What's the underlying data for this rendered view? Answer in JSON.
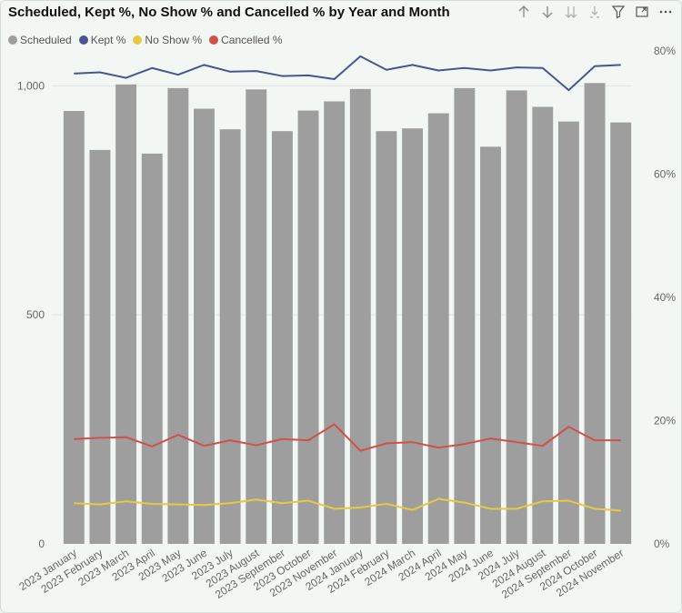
{
  "title": "Scheduled, Kept %, No Show % and Cancelled % by Year and Month",
  "toolbar": {
    "icons": [
      "arrow-up-icon",
      "arrow-down-icon",
      "double-arrow-down-icon",
      "expand-hierarchy-icon",
      "filter-icon",
      "focus-mode-icon",
      "more-options-icon"
    ]
  },
  "legend": [
    {
      "label": "Scheduled",
      "color": "#9e9e9e"
    },
    {
      "label": "Kept %",
      "color": "#4a5490"
    },
    {
      "label": "No Show %",
      "color": "#e8c840"
    },
    {
      "label": "Cancelled %",
      "color": "#d0514a"
    }
  ],
  "chart_data": {
    "type": "bar",
    "title": "Scheduled, Kept %, No Show % and Cancelled % by Year and Month",
    "categories": [
      "2023 January",
      "2023 February",
      "2023 March",
      "2023 April",
      "2023 May",
      "2023 June",
      "2023 July",
      "2023 August",
      "2023 September",
      "2023 October",
      "2023 November",
      "2024 January",
      "2024 February",
      "2024 March",
      "2024 April",
      "2024 May",
      "2024 June",
      "2024 July",
      "2024 August",
      "2024 September",
      "2024 October",
      "2024 November"
    ],
    "left_axis": {
      "ylim": [
        0,
        1090
      ],
      "ticks": [
        0,
        500,
        1000
      ],
      "tick_labels": [
        "0",
        "500",
        "1,000"
      ]
    },
    "right_axis": {
      "ylim": [
        0,
        81
      ],
      "ticks": [
        0,
        20,
        40,
        60,
        80
      ],
      "tick_labels": [
        "0%",
        "20%",
        "40%",
        "60%",
        "80%"
      ]
    },
    "bars": {
      "name": "Scheduled",
      "axis": "left",
      "color": "#9e9e9e",
      "values": [
        945,
        860,
        1003,
        852,
        995,
        950,
        905,
        992,
        901,
        946,
        966,
        993,
        901,
        907,
        940,
        995,
        867,
        990,
        954,
        922,
        1006,
        920
      ]
    },
    "lines": [
      {
        "name": "Kept %",
        "axis": "right",
        "color": "#4a5490",
        "values": [
          76.3,
          76.5,
          75.6,
          77.2,
          76.1,
          77.7,
          76.6,
          76.7,
          75.9,
          76.0,
          75.4,
          79.1,
          76.9,
          77.7,
          76.8,
          77.2,
          76.8,
          77.3,
          77.2,
          73.6,
          77.5,
          77.7
        ]
      },
      {
        "name": "No Show %",
        "axis": "right",
        "color": "#e8c840",
        "values": [
          6.6,
          6.4,
          6.9,
          6.5,
          6.4,
          6.3,
          6.6,
          7.2,
          6.6,
          7.0,
          5.7,
          5.9,
          6.5,
          5.5,
          7.3,
          6.7,
          5.7,
          5.7,
          6.9,
          7.0,
          5.7,
          5.4
        ]
      },
      {
        "name": "Cancelled %",
        "axis": "right",
        "color": "#d0514a",
        "values": [
          17.0,
          17.2,
          17.3,
          15.8,
          17.7,
          15.9,
          16.8,
          16.0,
          17.0,
          16.8,
          19.4,
          15.1,
          16.3,
          16.5,
          15.6,
          16.2,
          17.1,
          16.5,
          15.9,
          19.0,
          16.8,
          16.8
        ]
      }
    ],
    "grid": true,
    "legend_position": "top-left"
  }
}
